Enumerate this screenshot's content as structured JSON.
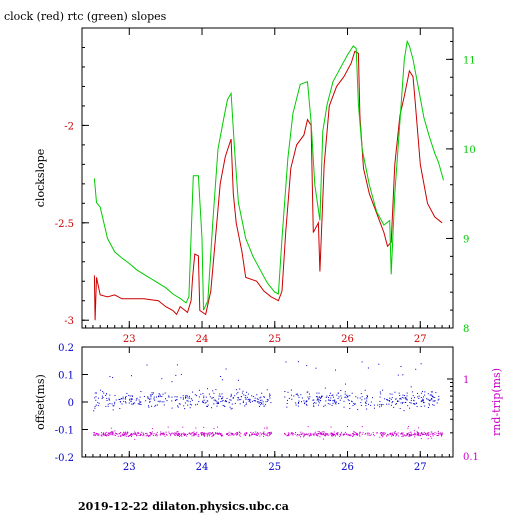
{
  "page": {
    "title": "clock (red) rtc (green) slopes",
    "footer": "2019-12-22  dilaton.physics.ubc.ca"
  },
  "chart_data": [
    {
      "type": "line",
      "ylabel": "clockslope",
      "yticks_left": [
        "-2",
        "-2.5",
        "-3"
      ],
      "yticks_right": [
        "11",
        "10",
        "9",
        "8"
      ],
      "xticks": [
        "23",
        "24",
        "25",
        "26",
        "27"
      ],
      "xlim": [
        22.35,
        27.45
      ],
      "ylim_left": [
        -3.04,
        -1.5
      ],
      "ylim_right": [
        8,
        11.35
      ],
      "series": [
        {
          "color": "#cc0000",
          "axis": "left",
          "points": [
            [
              22.52,
              -2.77
            ],
            [
              22.53,
              -3.0
            ],
            [
              22.55,
              -2.78
            ],
            [
              22.6,
              -2.87
            ],
            [
              22.7,
              -2.88
            ],
            [
              22.8,
              -2.87
            ],
            [
              22.9,
              -2.89
            ],
            [
              23.0,
              -2.89
            ],
            [
              23.2,
              -2.89
            ],
            [
              23.4,
              -2.9
            ],
            [
              23.5,
              -2.93
            ],
            [
              23.6,
              -2.95
            ],
            [
              23.65,
              -2.97
            ],
            [
              23.7,
              -2.93
            ],
            [
              23.8,
              -2.96
            ],
            [
              23.85,
              -2.9
            ],
            [
              23.87,
              -2.78
            ],
            [
              23.9,
              -2.66
            ],
            [
              23.95,
              -2.67
            ],
            [
              23.97,
              -2.95
            ],
            [
              24.05,
              -2.97
            ],
            [
              24.12,
              -2.85
            ],
            [
              24.18,
              -2.6
            ],
            [
              24.25,
              -2.3
            ],
            [
              24.32,
              -2.16
            ],
            [
              24.4,
              -2.07
            ],
            [
              24.43,
              -2.35
            ],
            [
              24.47,
              -2.5
            ],
            [
              24.55,
              -2.65
            ],
            [
              24.6,
              -2.78
            ],
            [
              24.75,
              -2.8
            ],
            [
              24.85,
              -2.85
            ],
            [
              24.95,
              -2.88
            ],
            [
              25.05,
              -2.9
            ],
            [
              25.1,
              -2.85
            ],
            [
              25.15,
              -2.55
            ],
            [
              25.22,
              -2.22
            ],
            [
              25.3,
              -2.1
            ],
            [
              25.4,
              -2.05
            ],
            [
              25.45,
              -1.97
            ],
            [
              25.5,
              -2.0
            ],
            [
              25.53,
              -2.55
            ],
            [
              25.6,
              -2.5
            ],
            [
              25.62,
              -2.75
            ],
            [
              25.68,
              -2.2
            ],
            [
              25.75,
              -1.9
            ],
            [
              25.85,
              -1.8
            ],
            [
              25.95,
              -1.75
            ],
            [
              26.05,
              -1.68
            ],
            [
              26.1,
              -1.62
            ],
            [
              26.15,
              -1.63
            ],
            [
              26.17,
              -1.95
            ],
            [
              26.22,
              -2.22
            ],
            [
              26.3,
              -2.35
            ],
            [
              26.4,
              -2.45
            ],
            [
              26.5,
              -2.55
            ],
            [
              26.55,
              -2.62
            ],
            [
              26.6,
              -2.6
            ],
            [
              26.65,
              -2.2
            ],
            [
              26.72,
              -1.95
            ],
            [
              26.78,
              -1.85
            ],
            [
              26.85,
              -1.72
            ],
            [
              26.9,
              -1.75
            ],
            [
              26.93,
              -1.88
            ],
            [
              27.0,
              -2.2
            ],
            [
              27.1,
              -2.4
            ],
            [
              27.2,
              -2.47
            ],
            [
              27.3,
              -2.5
            ]
          ]
        },
        {
          "color": "#00cc00",
          "axis": "right",
          "points": [
            [
              22.52,
              9.67
            ],
            [
              22.55,
              9.4
            ],
            [
              22.6,
              9.35
            ],
            [
              22.7,
              9.0
            ],
            [
              22.8,
              8.85
            ],
            [
              22.9,
              8.78
            ],
            [
              23.0,
              8.72
            ],
            [
              23.1,
              8.65
            ],
            [
              23.2,
              8.6
            ],
            [
              23.3,
              8.55
            ],
            [
              23.4,
              8.5
            ],
            [
              23.5,
              8.45
            ],
            [
              23.6,
              8.38
            ],
            [
              23.7,
              8.33
            ],
            [
              23.78,
              8.28
            ],
            [
              23.82,
              8.35
            ],
            [
              23.88,
              9.7
            ],
            [
              23.95,
              9.7
            ],
            [
              24.0,
              9.0
            ],
            [
              24.02,
              8.2
            ],
            [
              24.08,
              8.3
            ],
            [
              24.15,
              9.2
            ],
            [
              24.22,
              10.0
            ],
            [
              24.3,
              10.35
            ],
            [
              24.35,
              10.55
            ],
            [
              24.4,
              10.62
            ],
            [
              24.45,
              9.95
            ],
            [
              24.5,
              9.4
            ],
            [
              24.6,
              9.0
            ],
            [
              24.7,
              8.8
            ],
            [
              24.8,
              8.65
            ],
            [
              24.9,
              8.5
            ],
            [
              25.0,
              8.4
            ],
            [
              25.05,
              8.38
            ],
            [
              25.1,
              9.0
            ],
            [
              25.18,
              9.9
            ],
            [
              25.25,
              10.4
            ],
            [
              25.35,
              10.72
            ],
            [
              25.45,
              10.75
            ],
            [
              25.5,
              10.3
            ],
            [
              25.55,
              9.6
            ],
            [
              25.62,
              9.2
            ],
            [
              25.66,
              10.2
            ],
            [
              25.72,
              10.5
            ],
            [
              25.8,
              10.75
            ],
            [
              25.9,
              10.9
            ],
            [
              26.0,
              11.05
            ],
            [
              26.08,
              11.15
            ],
            [
              26.12,
              11.12
            ],
            [
              26.15,
              10.5
            ],
            [
              26.2,
              10.0
            ],
            [
              26.3,
              9.6
            ],
            [
              26.4,
              9.3
            ],
            [
              26.5,
              9.15
            ],
            [
              26.58,
              9.2
            ],
            [
              26.6,
              8.6
            ],
            [
              26.65,
              9.5
            ],
            [
              26.72,
              10.3
            ],
            [
              26.78,
              11.0
            ],
            [
              26.82,
              11.2
            ],
            [
              26.85,
              11.15
            ],
            [
              26.9,
              11.0
            ],
            [
              26.97,
              10.7
            ],
            [
              27.05,
              10.35
            ],
            [
              27.12,
              10.15
            ],
            [
              27.2,
              9.95
            ],
            [
              27.25,
              9.85
            ],
            [
              27.32,
              9.65
            ]
          ]
        }
      ]
    },
    {
      "type": "scatter",
      "ylabel_left": "offset(ms)",
      "ylabel_right": "rnd-trip(ms)",
      "yticks_left": [
        "0.2",
        "0.1",
        "0",
        "-0.1",
        "-0.2"
      ],
      "yticks_right": [
        "1",
        "0.1"
      ],
      "xticks": [
        "23",
        "24",
        "25",
        "26",
        "27"
      ],
      "xlim": [
        22.35,
        27.45
      ],
      "ylim_left": [
        -0.2,
        0.2
      ],
      "series": [
        {
          "name": "offset",
          "color": "#0000cc",
          "axis": "left",
          "x_range": [
            22.5,
            27.3
          ],
          "center": 0.01,
          "spread": 0.045,
          "count": 650,
          "gap": [
            24.95,
            25.12
          ]
        },
        {
          "name": "rnd-trip",
          "color": "#cc00cc",
          "axis": "right",
          "x_range": [
            22.5,
            27.3
          ],
          "center": -0.115,
          "spread": 0.012,
          "count": 800,
          "gap": [
            24.95,
            25.12
          ]
        }
      ]
    }
  ]
}
